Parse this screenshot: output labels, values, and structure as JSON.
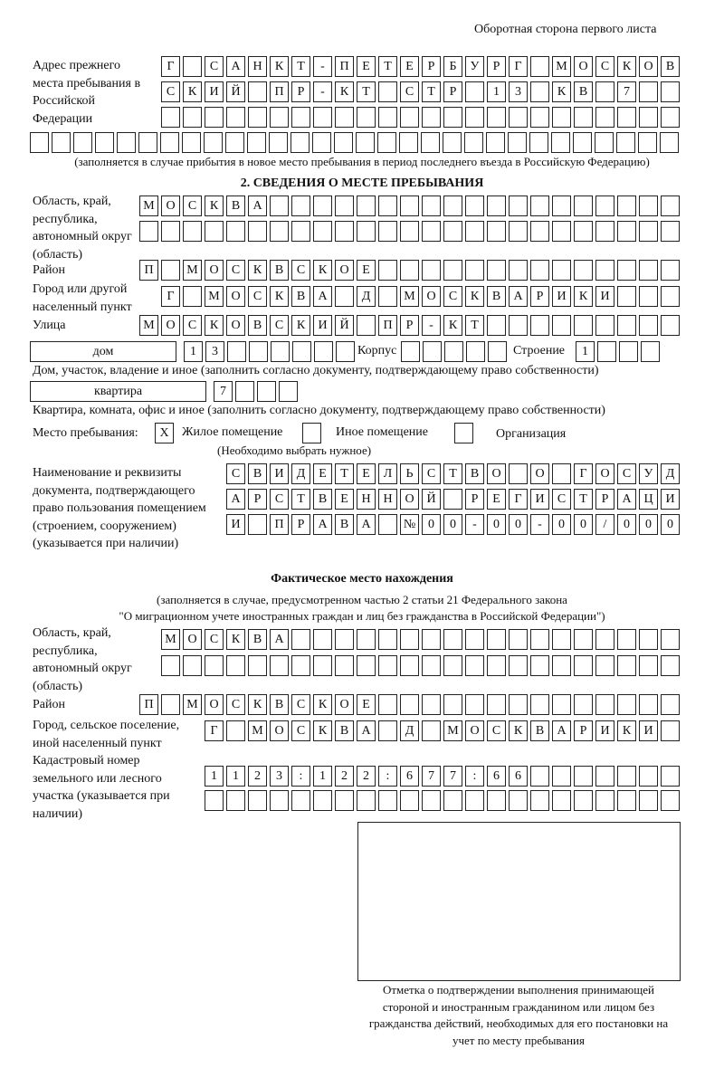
{
  "header": {
    "page_side": "Оборотная сторона первого листа"
  },
  "previous_address": {
    "label": "Адрес прежнего места пребывания в Российской Федерации",
    "rows": [
      [
        "Г",
        "",
        "С",
        "А",
        "Н",
        "К",
        "Т",
        "-",
        "П",
        "Е",
        "Т",
        "Е",
        "Р",
        "Б",
        "У",
        "Р",
        "Г",
        "",
        "М",
        "О",
        "С",
        "К",
        "О",
        "В"
      ],
      [
        "С",
        "К",
        "И",
        "Й",
        "",
        "П",
        "Р",
        "-",
        "К",
        "Т",
        "",
        "С",
        "Т",
        "Р",
        "",
        "1",
        "3",
        "",
        "К",
        "В",
        "",
        "7",
        "",
        ""
      ],
      [
        "",
        "",
        "",
        "",
        "",
        "",
        "",
        "",
        "",
        "",
        "",
        "",
        "",
        "",
        "",
        "",
        "",
        "",
        "",
        "",
        "",
        "",
        "",
        ""
      ],
      [
        "",
        "",
        "",
        "",
        "",
        "",
        "",
        "",
        "",
        "",
        "",
        "",
        "",
        "",
        "",
        "",
        "",
        "",
        "",
        "",
        "",
        "",
        "",
        "",
        "",
        "",
        "",
        "",
        "",
        ""
      ]
    ],
    "note": "(заполняется в случае прибытия в новое место пребывания в период последнего въезда в Российскую Федерацию)"
  },
  "section2": {
    "title": "2. СВЕДЕНИЯ О МЕСТЕ ПРЕБЫВАНИЯ",
    "region_label": "Область, край, республика, автономный округ (область)",
    "region_rows": [
      [
        "М",
        "О",
        "С",
        "К",
        "В",
        "А",
        "",
        "",
        "",
        "",
        "",
        "",
        "",
        "",
        "",
        "",
        "",
        "",
        "",
        "",
        "",
        "",
        "",
        "",
        ""
      ],
      [
        "",
        "",
        "",
        "",
        "",
        "",
        "",
        "",
        "",
        "",
        "",
        "",
        "",
        "",
        "",
        "",
        "",
        "",
        "",
        "",
        "",
        "",
        "",
        "",
        ""
      ]
    ],
    "district_label": "Район",
    "district_row": [
      "П",
      "",
      "М",
      "О",
      "С",
      "К",
      "В",
      "С",
      "К",
      "О",
      "Е",
      "",
      "",
      "",
      "",
      "",
      "",
      "",
      "",
      "",
      "",
      "",
      "",
      "",
      ""
    ],
    "city_label": "Город или другой населенный пункт",
    "city_row": [
      "Г",
      "",
      "М",
      "О",
      "С",
      "К",
      "В",
      "А",
      "",
      "Д",
      "",
      "М",
      "О",
      "С",
      "К",
      "В",
      "А",
      "Р",
      "И",
      "К",
      "И",
      "",
      "",
      ""
    ],
    "street_label": "Улица",
    "street_row": [
      "М",
      "О",
      "С",
      "К",
      "О",
      "В",
      "С",
      "К",
      "И",
      "Й",
      "",
      "П",
      "Р",
      "-",
      "К",
      "Т",
      "",
      "",
      "",
      "",
      "",
      "",
      "",
      "",
      ""
    ],
    "house_type": "дом",
    "house_row": [
      "1",
      "3",
      "",
      "",
      "",
      "",
      "",
      ""
    ],
    "korpus_label": "Корпус",
    "korpus_row": [
      "",
      "",
      "",
      "",
      ""
    ],
    "building_label": "Строение",
    "building_row": [
      "1",
      "",
      "",
      ""
    ],
    "house_note": "Дом, участок, владение и иное (заполнить согласно документу, подтверждающему право собственности)",
    "apartment_type": "квартира",
    "apartment_row": [
      "7",
      "",
      "",
      ""
    ],
    "apartment_note": "Квартира, комната, офис и иное (заполнить согласно документу, подтверждающему право собственности)",
    "stay_place_label": "Место пребывания:",
    "stay_options": [
      {
        "mark": "X",
        "label": "Жилое помещение"
      },
      {
        "mark": "",
        "label": "Иное помещение"
      },
      {
        "mark": "",
        "label": "Организация"
      }
    ],
    "stay_note": "(Необходимо выбрать нужное)",
    "document_label": "Наименование и реквизиты документа, подтверждающего право пользования помещением (строением, сооружением) (указывается при наличии)",
    "document_rows": [
      [
        "С",
        "В",
        "И",
        "Д",
        "Е",
        "Т",
        "Е",
        "Л",
        "Ь",
        "С",
        "Т",
        "В",
        "О",
        "",
        "О",
        "",
        "Г",
        "О",
        "С",
        "У",
        "Д"
      ],
      [
        "А",
        "Р",
        "С",
        "Т",
        "В",
        "Е",
        "Н",
        "Н",
        "О",
        "Й",
        "",
        "Р",
        "Е",
        "Г",
        "И",
        "С",
        "Т",
        "Р",
        "А",
        "Ц",
        "И"
      ],
      [
        "И",
        "",
        "П",
        "Р",
        "А",
        "В",
        "А",
        "",
        "№",
        "0",
        "0",
        "-",
        "0",
        "0",
        "-",
        "0",
        "0",
        "/",
        "0",
        "0",
        "0"
      ]
    ]
  },
  "actual": {
    "title": "Фактическое место нахождения",
    "note1": "(заполняется в случае, предусмотренном частью 2 статьи 21 Федерального закона",
    "note2": "\"О миграционном учете иностранных граждан и лиц без гражданства в Российской Федерации\")",
    "region_label": "Область, край, республика, автономный округ (область)",
    "region_rows": [
      [
        "М",
        "О",
        "С",
        "К",
        "В",
        "А",
        "",
        "",
        "",
        "",
        "",
        "",
        "",
        "",
        "",
        "",
        "",
        "",
        "",
        "",
        "",
        "",
        "",
        ""
      ],
      [
        "",
        "",
        "",
        "",
        "",
        "",
        "",
        "",
        "",
        "",
        "",
        "",
        "",
        "",
        "",
        "",
        "",
        "",
        "",
        "",
        "",
        "",
        "",
        ""
      ]
    ],
    "district_label": "Район",
    "district_row": [
      "П",
      "",
      "М",
      "О",
      "С",
      "К",
      "В",
      "С",
      "К",
      "О",
      "Е",
      "",
      "",
      "",
      "",
      "",
      "",
      "",
      "",
      "",
      "",
      "",
      "",
      "",
      ""
    ],
    "city_label": "Город, сельское поселение, иной населенный пункт",
    "city_row": [
      "Г",
      "",
      "М",
      "О",
      "С",
      "К",
      "В",
      "А",
      "",
      "Д",
      "",
      "М",
      "О",
      "С",
      "К",
      "В",
      "А",
      "Р",
      "И",
      "К",
      "И",
      ""
    ],
    "cadastral_label": "Кадастровый номер земельного или лесного участка (указывается при наличии)",
    "cadastral_rows": [
      [
        "1",
        "1",
        "2",
        "3",
        ":",
        "1",
        "2",
        "2",
        ":",
        "6",
        "7",
        "7",
        ":",
        "6",
        "6",
        "",
        "",
        "",
        "",
        "",
        "",
        ""
      ],
      [
        "",
        "",
        "",
        "",
        "",
        "",
        "",
        "",
        "",
        "",
        "",
        "",
        "",
        "",
        "",
        "",
        "",
        "",
        "",
        "",
        "",
        ""
      ]
    ]
  },
  "stamp": {
    "caption": "Отметка о подтверждении выполнения принимающей стороной и иностранным гражданином или лицом без гражданства действий, необходимых для его постановки на учет по месту пребывания"
  }
}
